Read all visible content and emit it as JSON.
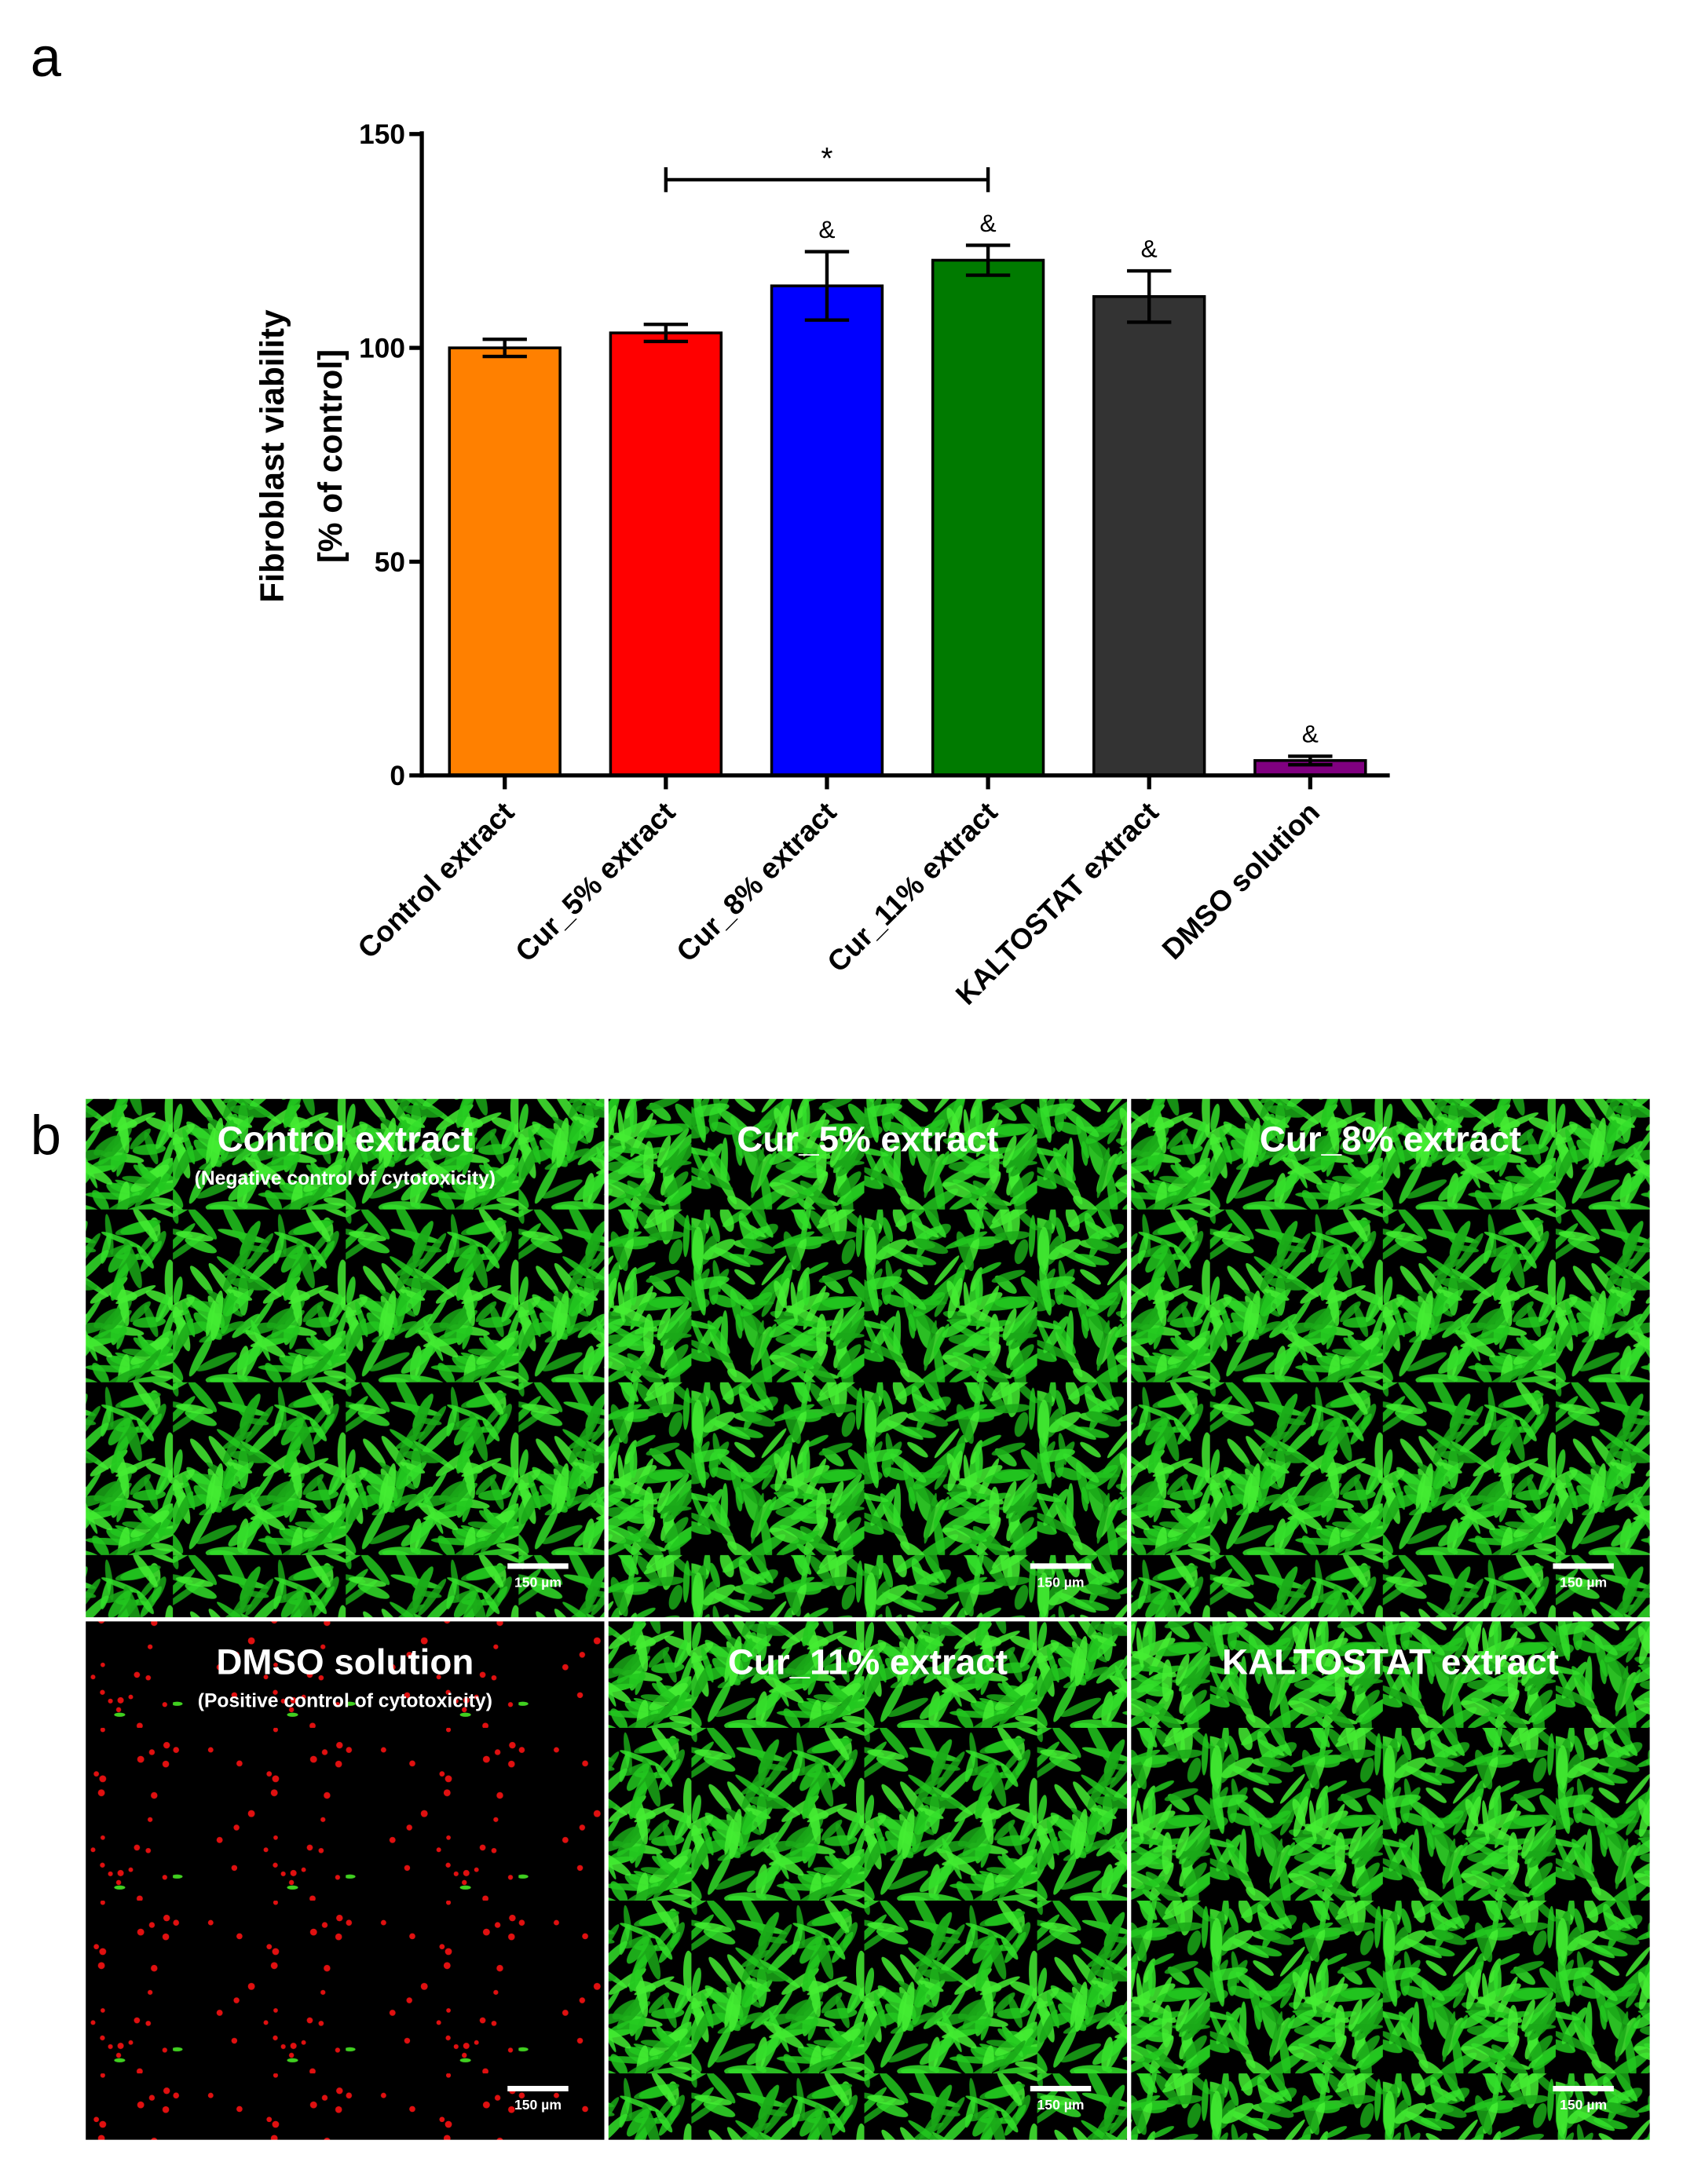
{
  "chart_data": {
    "type": "bar",
    "panel_label": "a",
    "ylabel": [
      "Fibroblast viability",
      "[% of control]"
    ],
    "categories": [
      "Control extract",
      "Cur_5% extract",
      "Cur_8% extract",
      "Cur_11% extract",
      "KALTOSTAT extract",
      "DMSO solution"
    ],
    "values": [
      100,
      103.5,
      114.5,
      120.5,
      112,
      3.5
    ],
    "errors": [
      2,
      2,
      8,
      3.5,
      6,
      1
    ],
    "colors": [
      "#ff8000",
      "#ff0000",
      "#0000ff",
      "#007a00",
      "#333333",
      "#800080"
    ],
    "annotations": [
      null,
      null,
      "&",
      "&",
      "&",
      "&"
    ],
    "significance": {
      "categories": [
        "Cur_5% extract",
        "Cur_11% extract"
      ],
      "label": "*"
    },
    "ylim": [
      0,
      150
    ],
    "yticks": [
      0,
      50,
      100,
      150
    ]
  },
  "panel_b": {
    "label": "b",
    "images": [
      {
        "title": "Control extract",
        "subtitle": "(Negative control of cytotoxicity)",
        "scale_bar": "150 µm"
      },
      {
        "title": "Cur_5% extract",
        "scale_bar": "150 µm"
      },
      {
        "title": "Cur_8% extract",
        "scale_bar": "150 µm"
      },
      {
        "title": "DMSO solution",
        "subtitle": "(Positive control of cytotoxicity)",
        "scale_bar": "150 µm"
      },
      {
        "title": "Cur_11% extract",
        "scale_bar": "150 µm"
      },
      {
        "title": "KALTOSTAT extract",
        "scale_bar": "150 µm"
      }
    ]
  }
}
